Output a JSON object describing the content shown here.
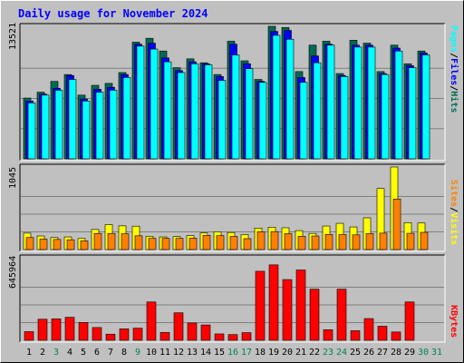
{
  "title": "Daily usage for November 2024",
  "colors": {
    "background": "#c0c0c0",
    "hits": "#006b54",
    "files": "#0000ff",
    "pages": "#00ffff",
    "visits": "#ffff00",
    "sites": "#ff8000",
    "kbytes": "#ff0000",
    "weekend_label": "#00805c",
    "title_text": "#0000ff"
  },
  "y_axis_labels": {
    "top": "13521",
    "middle": "1045",
    "bottom": "645964"
  },
  "legend_top": [
    "Pages",
    "/",
    "Files",
    "/",
    "Hits"
  ],
  "legend_middle": [
    "Sites",
    "/",
    "Visits"
  ],
  "legend_bottom": [
    "KBytes"
  ],
  "chart_data": [
    {
      "type": "bar",
      "title": "Daily usage for November 2024",
      "categories": [
        "1",
        "2",
        "3",
        "4",
        "5",
        "6",
        "7",
        "8",
        "9",
        "10",
        "11",
        "12",
        "13",
        "14",
        "15",
        "16",
        "17",
        "18",
        "19",
        "20",
        "21",
        "22",
        "23",
        "24",
        "25",
        "26",
        "27",
        "28",
        "29",
        "30",
        "31"
      ],
      "weekend_days": [
        3,
        9,
        16,
        17,
        23,
        24,
        30,
        31
      ],
      "ylim": [
        0,
        13521
      ],
      "series": [
        {
          "name": "Hits",
          "values": [
            6200,
            6800,
            7900,
            8600,
            6500,
            7500,
            7700,
            8800,
            11900,
            12300,
            11000,
            9300,
            10200,
            9800,
            8600,
            12000,
            10000,
            8100,
            13521,
            13400,
            8900,
            11600,
            12000,
            8700,
            12100,
            11800,
            8900,
            11600,
            9700,
            11000,
            0
          ]
        },
        {
          "name": "Files",
          "values": [
            5900,
            6600,
            7200,
            8500,
            6100,
            7100,
            7300,
            8600,
            11700,
            11800,
            10300,
            9000,
            9900,
            9700,
            8400,
            11700,
            9700,
            7900,
            13000,
            13100,
            8300,
            10500,
            11700,
            8500,
            11600,
            11600,
            8700,
            11300,
            9500,
            10800,
            0
          ]
        },
        {
          "name": "Pages",
          "values": [
            5700,
            6500,
            7000,
            8100,
            5900,
            6800,
            7000,
            8300,
            11500,
            11200,
            9900,
            8800,
            9700,
            9600,
            8000,
            10600,
            9200,
            7800,
            12600,
            12200,
            7800,
            9800,
            11600,
            8400,
            11400,
            11400,
            8600,
            11000,
            9300,
            10600,
            0
          ]
        }
      ]
    },
    {
      "type": "bar",
      "categories": [
        "1",
        "2",
        "3",
        "4",
        "5",
        "6",
        "7",
        "8",
        "9",
        "10",
        "11",
        "12",
        "13",
        "14",
        "15",
        "16",
        "17",
        "18",
        "19",
        "20",
        "21",
        "22",
        "23",
        "24",
        "25",
        "26",
        "27",
        "28",
        "29",
        "30",
        "31"
      ],
      "ylim": [
        0,
        1045
      ],
      "series": [
        {
          "name": "Visits",
          "values": [
            208,
            172,
            152,
            160,
            140,
            254,
            316,
            300,
            296,
            168,
            160,
            164,
            176,
            210,
            226,
            216,
            190,
            272,
            282,
            276,
            240,
            204,
            298,
            332,
            286,
            402,
            774,
            1045,
            340,
            336,
            0
          ]
        },
        {
          "name": "Sites",
          "values": [
            152,
            132,
            128,
            124,
            110,
            204,
            204,
            200,
            174,
            142,
            142,
            142,
            144,
            180,
            176,
            166,
            138,
            226,
            228,
            202,
            168,
            172,
            192,
            190,
            186,
            202,
            208,
            640,
            206,
            218,
            0
          ]
        }
      ]
    },
    {
      "type": "bar",
      "categories": [
        "1",
        "2",
        "3",
        "4",
        "5",
        "6",
        "7",
        "8",
        "9",
        "10",
        "11",
        "12",
        "13",
        "14",
        "15",
        "16",
        "17",
        "18",
        "19",
        "20",
        "21",
        "22",
        "23",
        "24",
        "25",
        "26",
        "27",
        "28",
        "29",
        "30",
        "31"
      ],
      "ylim": [
        0,
        645964
      ],
      "series": [
        {
          "name": "KBytes",
          "values": [
            68000,
            165000,
            168000,
            180000,
            140000,
            100000,
            48000,
            90000,
            95000,
            300000,
            62000,
            215000,
            135000,
            120000,
            50000,
            45000,
            60000,
            540000,
            590000,
            475000,
            550000,
            400000,
            83000,
            400000,
            75000,
            170000,
            110000,
            65000,
            300000,
            0,
            0
          ]
        }
      ]
    }
  ]
}
